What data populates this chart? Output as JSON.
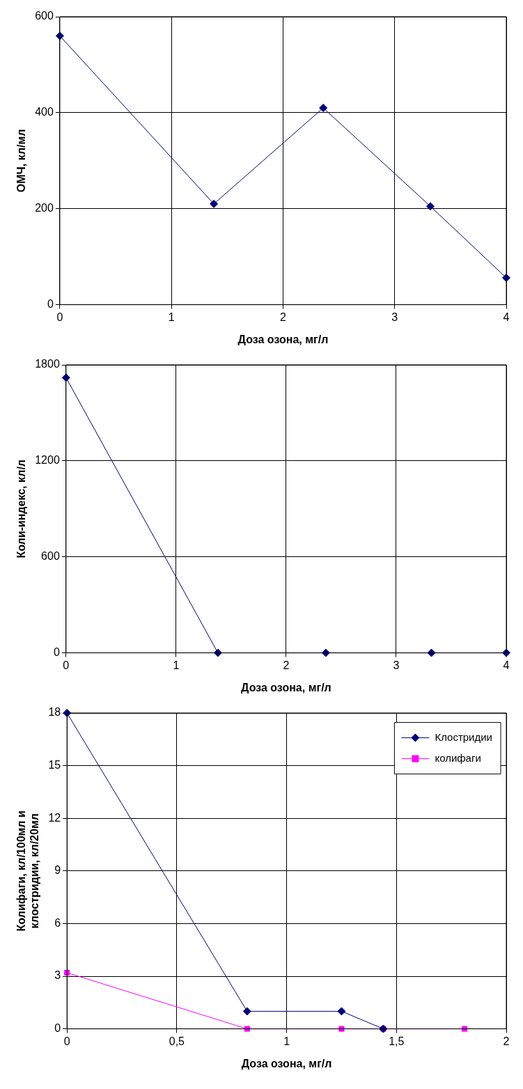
{
  "chart_data": [
    {
      "type": "line",
      "xlabel": "Доза озона, мг/л",
      "ylabel": "ОМЧ, кл/мл",
      "x": [
        0,
        1.38,
        2.36,
        3.32,
        4
      ],
      "series": [
        {
          "color": "#000080",
          "values": [
            560,
            210,
            410,
            205,
            56
          ],
          "marker": "diamond"
        }
      ],
      "xlim": [
        0,
        4
      ],
      "xticks": [
        0,
        1,
        2,
        3,
        4
      ],
      "ylim": [
        0,
        600
      ],
      "yticks": [
        0,
        200,
        400,
        600
      ],
      "grid": true,
      "legend": false,
      "line_style": "solid"
    },
    {
      "type": "line",
      "xlabel": "Доза озона, мг/л",
      "ylabel": "Коли-индекс, кл/л",
      "x": [
        0,
        1.38,
        2.36,
        3.32,
        4
      ],
      "series": [
        {
          "color": "#000080",
          "values": [
            1720,
            0,
            0,
            0,
            0
          ],
          "marker": "diamond"
        }
      ],
      "xlim": [
        0,
        4
      ],
      "xticks": [
        0,
        1,
        2,
        3,
        4
      ],
      "ylim": [
        0,
        1800
      ],
      "yticks": [
        0,
        600,
        1200,
        1800
      ],
      "grid": true,
      "legend": false,
      "line_style": "solid"
    },
    {
      "type": "line",
      "xlabel": "Доза озона, мг/л",
      "ylabel": "Колифаги, кл/100мл и клостридии, кл/20мл",
      "series": [
        {
          "name": "Клостридии",
          "color": "#000080",
          "x": [
            0,
            0.82,
            1.25,
            1.44
          ],
          "values": [
            18,
            1,
            1,
            0
          ],
          "marker": "diamond"
        },
        {
          "name": "колифаги",
          "color": "#ff00ff",
          "x": [
            0,
            0.82,
            1.25,
            1.44,
            1.81
          ],
          "values": [
            3.2,
            0,
            0,
            0,
            0
          ],
          "marker": "square"
        }
      ],
      "xlim": [
        0,
        2
      ],
      "xticks": [
        0,
        {
          "value": 0.5,
          "label": "0,5"
        },
        1,
        {
          "value": 1.5,
          "label": "1,5"
        },
        2
      ],
      "ylim": [
        0,
        18
      ],
      "yticks": [
        0,
        3,
        6,
        9,
        12,
        15,
        18
      ],
      "grid": true,
      "legend": "top right",
      "line_style": "solid"
    }
  ]
}
